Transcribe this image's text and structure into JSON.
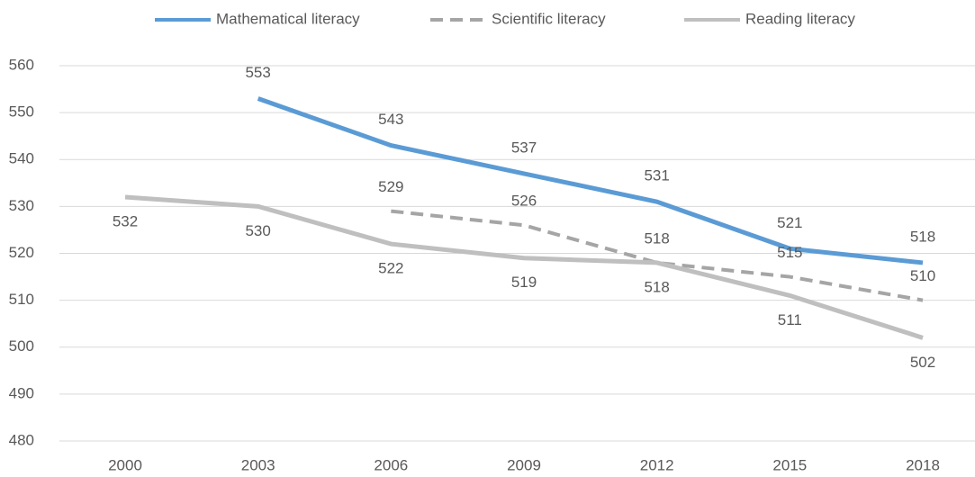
{
  "chart_data": {
    "type": "line",
    "categories": [
      "2000",
      "2003",
      "2006",
      "2009",
      "2012",
      "2015",
      "2018"
    ],
    "series": [
      {
        "name": "Mathematical literacy",
        "color": "#5b9bd5",
        "dash": false,
        "values": [
          null,
          553,
          543,
          537,
          531,
          521,
          518
        ]
      },
      {
        "name": "Scientific literacy",
        "color": "#a5a5a5",
        "dash": true,
        "values": [
          null,
          null,
          529,
          526,
          518,
          515,
          510
        ]
      },
      {
        "name": "Reading literacy",
        "color": "#bfbfbf",
        "dash": false,
        "values": [
          532,
          530,
          522,
          519,
          518,
          511,
          502
        ]
      }
    ],
    "ylim": [
      480,
      560
    ],
    "yticks": [
      480,
      490,
      500,
      510,
      520,
      530,
      540,
      550,
      560
    ],
    "grid": true,
    "legend": "top"
  }
}
